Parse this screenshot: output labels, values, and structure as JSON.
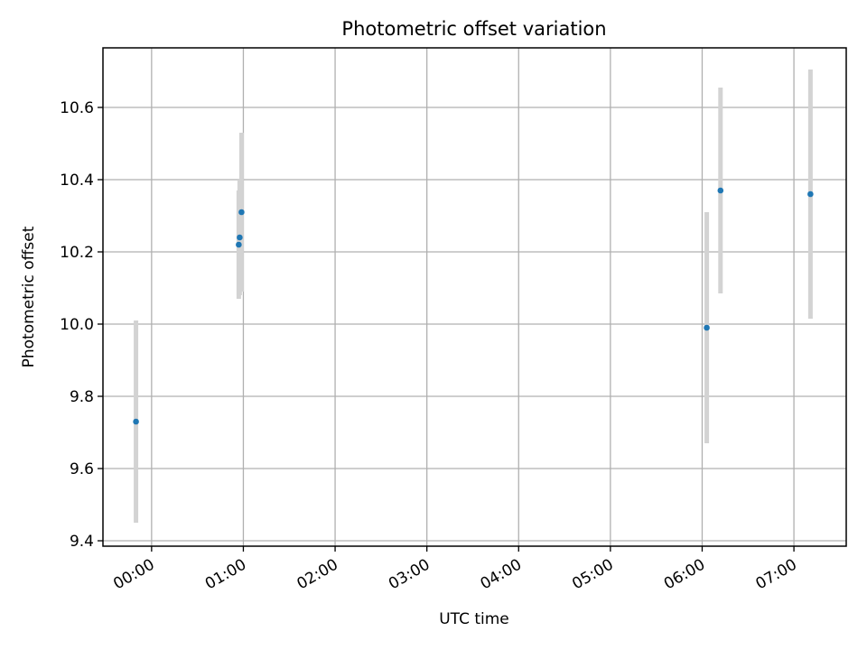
{
  "chart_data": {
    "type": "scatter",
    "title": "Photometric offset variation",
    "xlabel": "UTC time",
    "ylabel": "Photometric offset",
    "x_unit": "hours UTC",
    "xlim": [
      -0.53,
      7.57
    ],
    "ylim": [
      9.385,
      10.765
    ],
    "x_ticks": [
      0,
      1,
      2,
      3,
      4,
      5,
      6,
      7
    ],
    "x_tick_labels": [
      "00:00",
      "01:00",
      "02:00",
      "03:00",
      "04:00",
      "05:00",
      "06:00",
      "07:00"
    ],
    "y_ticks": [
      9.4,
      9.6,
      9.8,
      10.0,
      10.2,
      10.4,
      10.6
    ],
    "y_tick_labels": [
      "9.4",
      "9.6",
      "9.8",
      "10.0",
      "10.2",
      "10.4",
      "10.6"
    ],
    "grid": true,
    "legend": "none",
    "colors": {
      "point": "#1f77b4",
      "error_bar": "#d3d3d3",
      "grid": "#b0b0b0"
    },
    "series": [
      {
        "points": [
          {
            "x": -0.17,
            "y": 9.73,
            "err": 0.28
          },
          {
            "x": 0.95,
            "y": 10.22,
            "err": 0.15
          },
          {
            "x": 0.96,
            "y": 10.24,
            "err": 0.16
          },
          {
            "x": 0.98,
            "y": 10.31,
            "err": 0.22
          },
          {
            "x": 6.05,
            "y": 9.99,
            "err": 0.32
          },
          {
            "x": 6.2,
            "y": 10.37,
            "err": 0.285
          },
          {
            "x": 7.18,
            "y": 10.36,
            "err": 0.345
          }
        ]
      }
    ]
  }
}
